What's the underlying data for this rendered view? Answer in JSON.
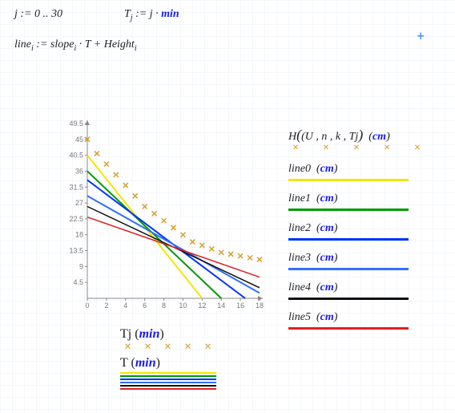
{
  "exprs": {
    "j_def_a": "j",
    "j_def_op": " := 0 .. 30",
    "T_def_a": "T",
    "T_def_sub": "j",
    "T_def_op": " := j · ",
    "T_def_b": "min",
    "line_def_a": "line",
    "line_def_sub": "i",
    "line_def_op": " := slope",
    "line_def_sub2": "i",
    "line_def_op2": " · T + Height",
    "line_def_sub3": "i"
  },
  "chart": {
    "type": "line+scatter",
    "plot_bg": "#ffffff",
    "axis_color": "#888888",
    "xlim": [
      0,
      18
    ],
    "ylim": [
      0,
      49.5
    ],
    "xticks": [
      0,
      2,
      4,
      6,
      8,
      10,
      12,
      14,
      16,
      18
    ],
    "yticks": [
      0,
      4.5,
      9,
      13.5,
      18,
      22.5,
      27,
      31.5,
      36,
      40.5,
      45,
      49.5
    ],
    "scatter": {
      "color": "#d4a030",
      "marker": "x",
      "size": 6,
      "x": [
        0,
        1,
        2,
        3,
        4,
        5,
        6,
        7,
        8,
        9,
        10,
        11,
        12,
        13,
        14,
        15,
        16,
        17,
        18
      ],
      "y": [
        45,
        41,
        38,
        35,
        32,
        29,
        26,
        24,
        22,
        20,
        18,
        16,
        15,
        14,
        13,
        12.5,
        12,
        11.5,
        11
      ]
    },
    "lines": [
      {
        "name": "line0",
        "color": "#f5e500",
        "width": 2,
        "x0": 0,
        "y0": 40.5,
        "x1": 12,
        "y1": 0
      },
      {
        "name": "line1",
        "color": "#009900",
        "width": 2,
        "x0": 0,
        "y0": 36,
        "x1": 14,
        "y1": 0
      },
      {
        "name": "line2",
        "color": "#0033ff",
        "width": 2,
        "x0": 0,
        "y0": 33.5,
        "x1": 16.5,
        "y1": 0
      },
      {
        "name": "line3",
        "color": "#3070ff",
        "width": 2,
        "x0": 0,
        "y0": 29,
        "x1": 18,
        "y1": 1.5
      },
      {
        "name": "line4",
        "color": "#111111",
        "width": 1.5,
        "x0": 0,
        "y0": 26,
        "x1": 18,
        "y1": 3
      },
      {
        "name": "line5",
        "color": "#e02020",
        "width": 1.5,
        "x0": 0,
        "y0": 23,
        "x1": 18,
        "y1": 6
      }
    ]
  },
  "axis_labels": {
    "x_a": "T",
    "x_sub": "j",
    "x_unit": "min",
    "x2_a": "T",
    "x2_unit": "min"
  },
  "legend": {
    "H_a": "H",
    "H_b": "(U , n , k , T",
    "H_sub": "j",
    "H_c": ")",
    "H_unit": "cm",
    "items": [
      {
        "label": "line",
        "sub": "0",
        "unit": "cm",
        "color": "#f5e500"
      },
      {
        "label": "line",
        "sub": "1",
        "unit": "cm",
        "color": "#009900"
      },
      {
        "label": "line",
        "sub": "2",
        "unit": "cm",
        "color": "#0033ff"
      },
      {
        "label": "line",
        "sub": "3",
        "unit": "cm",
        "color": "#3070ff"
      },
      {
        "label": "line",
        "sub": "4",
        "unit": "cm",
        "color": "#111111"
      },
      {
        "label": "line",
        "sub": "5",
        "unit": "cm",
        "color": "#e02020"
      }
    ],
    "bottom_line_colors": [
      "#f5e500",
      "#009900",
      "#0033ff",
      "#3070ff",
      "#111111",
      "#e02020"
    ]
  },
  "cursor": "+"
}
